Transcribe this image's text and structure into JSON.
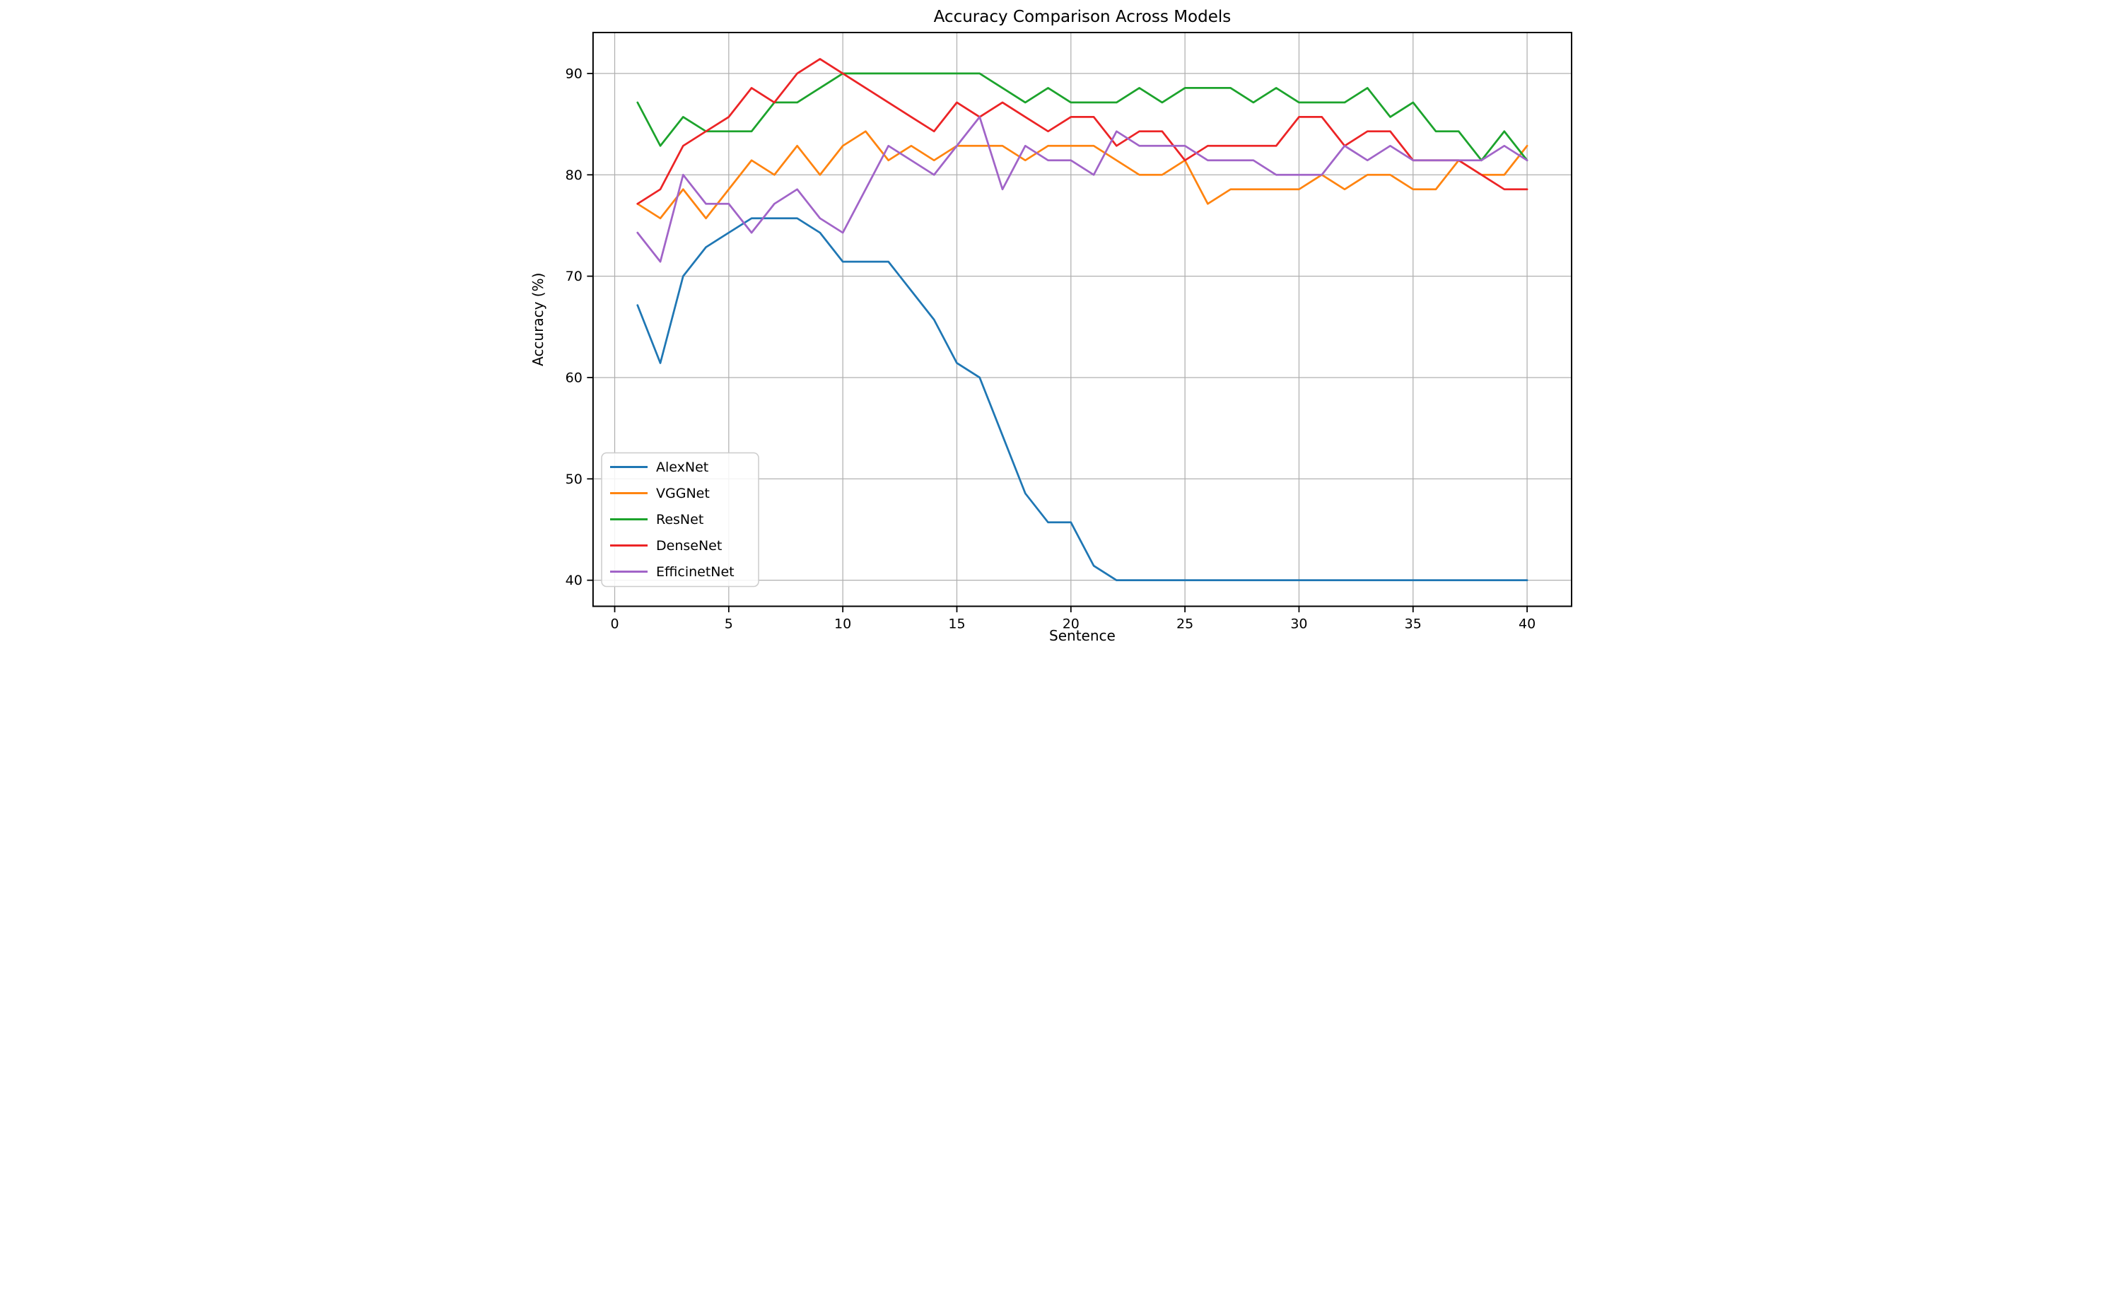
{
  "chart_data": {
    "type": "line",
    "title": "Accuracy Comparison Across Models",
    "xlabel": "Sentence",
    "ylabel": "Accuracy (%)",
    "x": [
      1,
      2,
      3,
      4,
      5,
      6,
      7,
      8,
      9,
      10,
      11,
      12,
      13,
      14,
      15,
      16,
      17,
      18,
      19,
      20,
      21,
      22,
      23,
      24,
      25,
      26,
      27,
      28,
      29,
      30,
      31,
      32,
      33,
      34,
      35,
      36,
      37,
      38,
      39,
      40
    ],
    "series": [
      {
        "name": "AlexNet",
        "color": "#1f77b4",
        "values": [
          67.14,
          61.43,
          70.0,
          72.86,
          74.29,
          75.71,
          75.71,
          75.71,
          74.29,
          71.43,
          71.43,
          71.43,
          68.57,
          65.71,
          61.43,
          60.0,
          54.29,
          48.57,
          45.71,
          45.71,
          41.43,
          40.0,
          40.0,
          40.0,
          40.0,
          40.0,
          40.0,
          40.0,
          40.0,
          40.0,
          40.0,
          40.0,
          40.0,
          40.0,
          40.0,
          40.0,
          40.0,
          40.0,
          40.0,
          40.0
        ]
      },
      {
        "name": "VGGNet",
        "color": "#ff8410",
        "values": [
          77.14,
          75.71,
          78.57,
          75.71,
          78.57,
          81.43,
          80.0,
          82.86,
          80.0,
          82.86,
          84.29,
          81.43,
          82.86,
          81.43,
          82.86,
          82.86,
          82.86,
          81.43,
          82.86,
          82.86,
          82.86,
          81.43,
          80.0,
          80.0,
          81.43,
          77.14,
          78.57,
          78.57,
          78.57,
          78.57,
          80.0,
          78.57,
          80.0,
          80.0,
          78.57,
          78.57,
          81.43,
          80.0,
          80.0,
          82.86
        ]
      },
      {
        "name": "ResNet",
        "color": "#1ca32c",
        "values": [
          87.14,
          82.86,
          85.71,
          84.29,
          84.29,
          84.29,
          87.14,
          87.14,
          88.57,
          90.0,
          90.0,
          90.0,
          90.0,
          90.0,
          90.0,
          90.0,
          88.57,
          87.14,
          88.57,
          87.14,
          87.14,
          87.14,
          88.57,
          87.14,
          88.57,
          88.57,
          88.57,
          87.14,
          88.57,
          87.14,
          87.14,
          87.14,
          88.57,
          85.71,
          87.14,
          84.29,
          84.29,
          81.43,
          84.29,
          81.43
        ]
      },
      {
        "name": "DenseNet",
        "color": "#ec2426",
        "values": [
          77.14,
          78.57,
          82.86,
          84.29,
          85.71,
          88.57,
          87.14,
          90.0,
          91.43,
          90.0,
          88.57,
          87.14,
          85.71,
          84.29,
          87.14,
          85.71,
          87.14,
          85.71,
          84.29,
          85.71,
          85.71,
          82.86,
          84.29,
          84.29,
          81.43,
          82.86,
          82.86,
          82.86,
          82.86,
          85.71,
          85.71,
          82.86,
          84.29,
          84.29,
          81.43,
          81.43,
          81.43,
          80.0,
          78.57,
          78.57
        ]
      },
      {
        "name": "EfficinetNet",
        "color": "#a164c8",
        "values": [
          74.29,
          71.43,
          80.0,
          77.14,
          77.14,
          74.29,
          77.14,
          78.57,
          75.71,
          74.29,
          78.57,
          82.86,
          81.43,
          80.0,
          82.86,
          85.71,
          78.57,
          82.86,
          81.43,
          81.43,
          80.0,
          84.29,
          82.86,
          82.86,
          82.86,
          81.43,
          81.43,
          81.43,
          80.0,
          80.0,
          80.0,
          82.86,
          81.43,
          82.86,
          81.43,
          81.43,
          81.43,
          81.43,
          82.86,
          81.43
        ]
      }
    ],
    "xticks": [
      0,
      5,
      10,
      15,
      20,
      25,
      30,
      35,
      40
    ],
    "yticks": [
      40,
      50,
      60,
      70,
      80,
      90
    ],
    "xlim": [
      -0.95,
      41.95
    ],
    "ylim": [
      37.43,
      94.04
    ],
    "grid": true,
    "legend_position": "lower left",
    "grid_color": "#b0b0b0",
    "spine_color": "#000000",
    "legend_border_color": "#cccccc"
  }
}
